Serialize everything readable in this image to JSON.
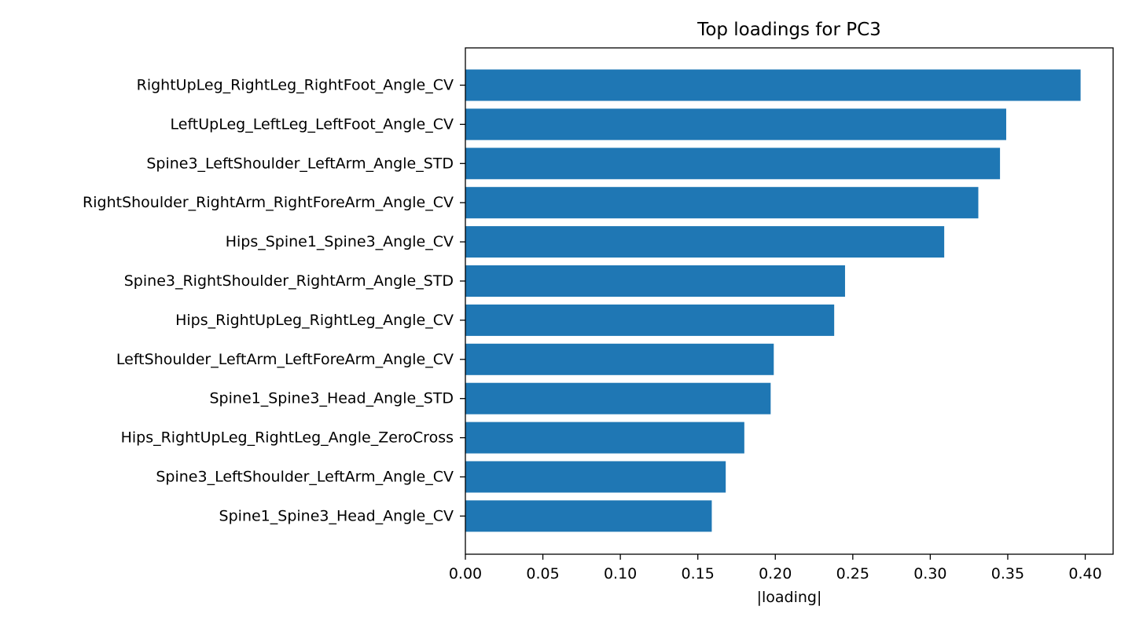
{
  "chart_data": {
    "type": "bar",
    "orientation": "horizontal",
    "title": "Top loadings for PC3",
    "xlabel": "|loading|",
    "ylabel": "",
    "xlim": [
      0.0,
      0.418
    ],
    "xticks": [
      0.0,
      0.05,
      0.1,
      0.15,
      0.2,
      0.25,
      0.3,
      0.35,
      0.4
    ],
    "xtick_labels": [
      "0.00",
      "0.05",
      "0.10",
      "0.15",
      "0.20",
      "0.25",
      "0.30",
      "0.35",
      "0.40"
    ],
    "grid": false,
    "bar_color": "#1f77b4",
    "categories": [
      "RightUpLeg_RightLeg_RightFoot_Angle_CV",
      "LeftUpLeg_LeftLeg_LeftFoot_Angle_CV",
      "Spine3_LeftShoulder_LeftArm_Angle_STD",
      "RightShoulder_RightArm_RightForeArm_Angle_CV",
      "Hips_Spine1_Spine3_Angle_CV",
      "Spine3_RightShoulder_RightArm_Angle_STD",
      "Hips_RightUpLeg_RightLeg_Angle_CV",
      "LeftShoulder_LeftArm_LeftForeArm_Angle_CV",
      "Spine1_Spine3_Head_Angle_STD",
      "Hips_RightUpLeg_RightLeg_Angle_ZeroCross",
      "Spine3_LeftShoulder_LeftArm_Angle_CV",
      "Spine1_Spine3_Head_Angle_CV"
    ],
    "values": [
      0.397,
      0.349,
      0.345,
      0.331,
      0.309,
      0.245,
      0.238,
      0.199,
      0.197,
      0.18,
      0.168,
      0.159
    ]
  }
}
